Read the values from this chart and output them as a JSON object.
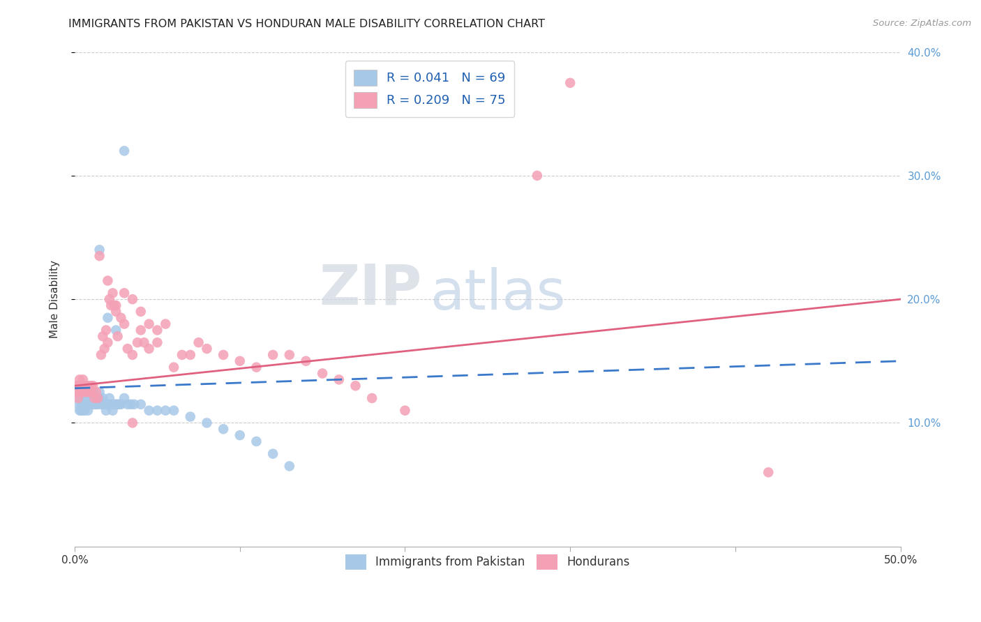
{
  "title": "IMMIGRANTS FROM PAKISTAN VS HONDURAN MALE DISABILITY CORRELATION CHART",
  "source": "Source: ZipAtlas.com",
  "xlabel_blue": "Immigrants from Pakistan",
  "xlabel_pink": "Hondurans",
  "ylabel": "Male Disability",
  "watermark_zip": "ZIP",
  "watermark_atlas": "atlas",
  "xlim": [
    0.0,
    0.5
  ],
  "ylim": [
    0.0,
    0.4
  ],
  "xticks": [
    0.0,
    0.1,
    0.2,
    0.3,
    0.4,
    0.5
  ],
  "yticks": [
    0.1,
    0.2,
    0.3,
    0.4
  ],
  "xtick_labels": [
    "0.0%",
    "",
    "",
    "",
    "",
    "50.0%"
  ],
  "ytick_labels_right": [
    "10.0%",
    "20.0%",
    "30.0%",
    "40.0%"
  ],
  "blue_R": 0.041,
  "blue_N": 69,
  "pink_R": 0.209,
  "pink_N": 75,
  "blue_scatter_color": "#a8c8e8",
  "pink_scatter_color": "#f4a0b5",
  "blue_line_color": "#3a78c9",
  "pink_line_color": "#e06080",
  "blue_pts_x": [
    0.001,
    0.002,
    0.002,
    0.003,
    0.003,
    0.003,
    0.004,
    0.004,
    0.004,
    0.005,
    0.005,
    0.005,
    0.005,
    0.006,
    0.006,
    0.006,
    0.007,
    0.007,
    0.007,
    0.008,
    0.008,
    0.008,
    0.009,
    0.009,
    0.01,
    0.01,
    0.01,
    0.011,
    0.011,
    0.012,
    0.012,
    0.013,
    0.013,
    0.014,
    0.015,
    0.015,
    0.016,
    0.017,
    0.018,
    0.019,
    0.02,
    0.021,
    0.022,
    0.023,
    0.024,
    0.025,
    0.026,
    0.027,
    0.028,
    0.03,
    0.032,
    0.034,
    0.036,
    0.04,
    0.045,
    0.05,
    0.055,
    0.06,
    0.07,
    0.08,
    0.09,
    0.1,
    0.11,
    0.12,
    0.13,
    0.015,
    0.02,
    0.025,
    0.03
  ],
  "blue_pts_y": [
    0.125,
    0.13,
    0.115,
    0.12,
    0.11,
    0.125,
    0.115,
    0.125,
    0.11,
    0.12,
    0.125,
    0.11,
    0.115,
    0.12,
    0.115,
    0.11,
    0.125,
    0.115,
    0.12,
    0.115,
    0.11,
    0.12,
    0.115,
    0.12,
    0.115,
    0.12,
    0.125,
    0.115,
    0.12,
    0.115,
    0.12,
    0.115,
    0.12,
    0.115,
    0.12,
    0.125,
    0.115,
    0.12,
    0.115,
    0.11,
    0.115,
    0.12,
    0.115,
    0.11,
    0.115,
    0.115,
    0.115,
    0.115,
    0.115,
    0.12,
    0.115,
    0.115,
    0.115,
    0.115,
    0.11,
    0.11,
    0.11,
    0.11,
    0.105,
    0.1,
    0.095,
    0.09,
    0.085,
    0.075,
    0.065,
    0.24,
    0.185,
    0.175,
    0.32
  ],
  "pink_pts_x": [
    0.001,
    0.001,
    0.002,
    0.002,
    0.002,
    0.003,
    0.003,
    0.003,
    0.004,
    0.004,
    0.005,
    0.005,
    0.005,
    0.006,
    0.006,
    0.007,
    0.007,
    0.008,
    0.008,
    0.009,
    0.01,
    0.01,
    0.011,
    0.012,
    0.013,
    0.014,
    0.015,
    0.016,
    0.017,
    0.018,
    0.019,
    0.02,
    0.021,
    0.022,
    0.023,
    0.024,
    0.025,
    0.026,
    0.028,
    0.03,
    0.032,
    0.035,
    0.038,
    0.04,
    0.042,
    0.045,
    0.05,
    0.055,
    0.06,
    0.065,
    0.07,
    0.075,
    0.08,
    0.09,
    0.1,
    0.11,
    0.12,
    0.13,
    0.14,
    0.15,
    0.16,
    0.17,
    0.18,
    0.2,
    0.02,
    0.025,
    0.03,
    0.035,
    0.04,
    0.045,
    0.05,
    0.28,
    0.42,
    0.3,
    0.035
  ],
  "pink_pts_y": [
    0.13,
    0.125,
    0.13,
    0.125,
    0.12,
    0.13,
    0.125,
    0.135,
    0.125,
    0.13,
    0.13,
    0.125,
    0.135,
    0.125,
    0.13,
    0.13,
    0.125,
    0.13,
    0.125,
    0.125,
    0.13,
    0.125,
    0.13,
    0.12,
    0.125,
    0.12,
    0.235,
    0.155,
    0.17,
    0.16,
    0.175,
    0.165,
    0.2,
    0.195,
    0.205,
    0.195,
    0.19,
    0.17,
    0.185,
    0.18,
    0.16,
    0.155,
    0.165,
    0.175,
    0.165,
    0.16,
    0.165,
    0.18,
    0.145,
    0.155,
    0.155,
    0.165,
    0.16,
    0.155,
    0.15,
    0.145,
    0.155,
    0.155,
    0.15,
    0.14,
    0.135,
    0.13,
    0.12,
    0.11,
    0.215,
    0.195,
    0.205,
    0.2,
    0.19,
    0.18,
    0.175,
    0.3,
    0.06,
    0.375,
    0.1
  ],
  "blue_line_x": [
    0.0,
    0.5
  ],
  "blue_line_y_start": 0.128,
  "blue_line_y_end": 0.15,
  "pink_line_x": [
    0.0,
    0.5
  ],
  "pink_line_y_start": 0.13,
  "pink_line_y_end": 0.2
}
